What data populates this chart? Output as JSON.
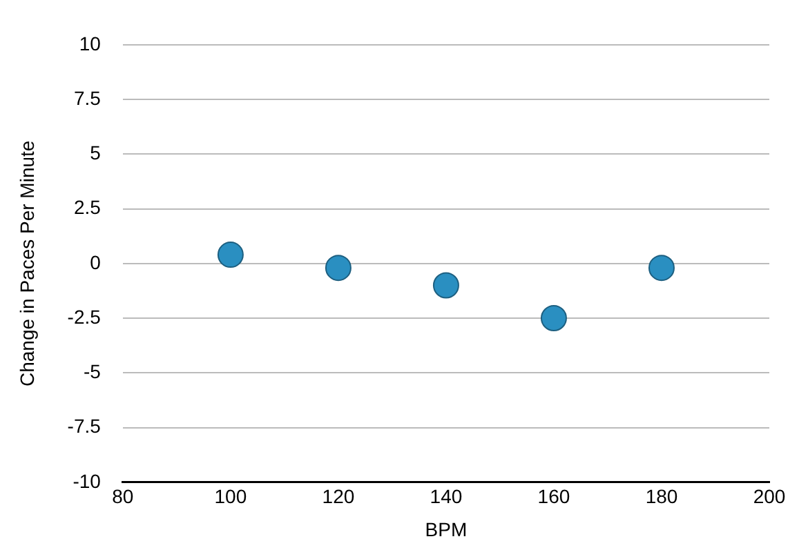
{
  "chart_data": {
    "type": "scatter",
    "xlabel": "BPM",
    "ylabel": "Change in Paces Per Minute",
    "x": [
      100,
      120,
      140,
      160,
      180
    ],
    "values": [
      0.4,
      -0.2,
      -1,
      -2.5,
      -0.2
    ],
    "color": "#2a8fc1",
    "xlim": [
      80,
      200
    ],
    "xticks": [
      80,
      100,
      120,
      140,
      160,
      180,
      200
    ],
    "ylim": [
      -10,
      10
    ],
    "yticks": [
      -10,
      -7.5,
      -5,
      -2.5,
      0,
      2.5,
      5,
      7.5,
      10
    ],
    "grid": "y",
    "legend": false,
    "marker": "circle"
  }
}
